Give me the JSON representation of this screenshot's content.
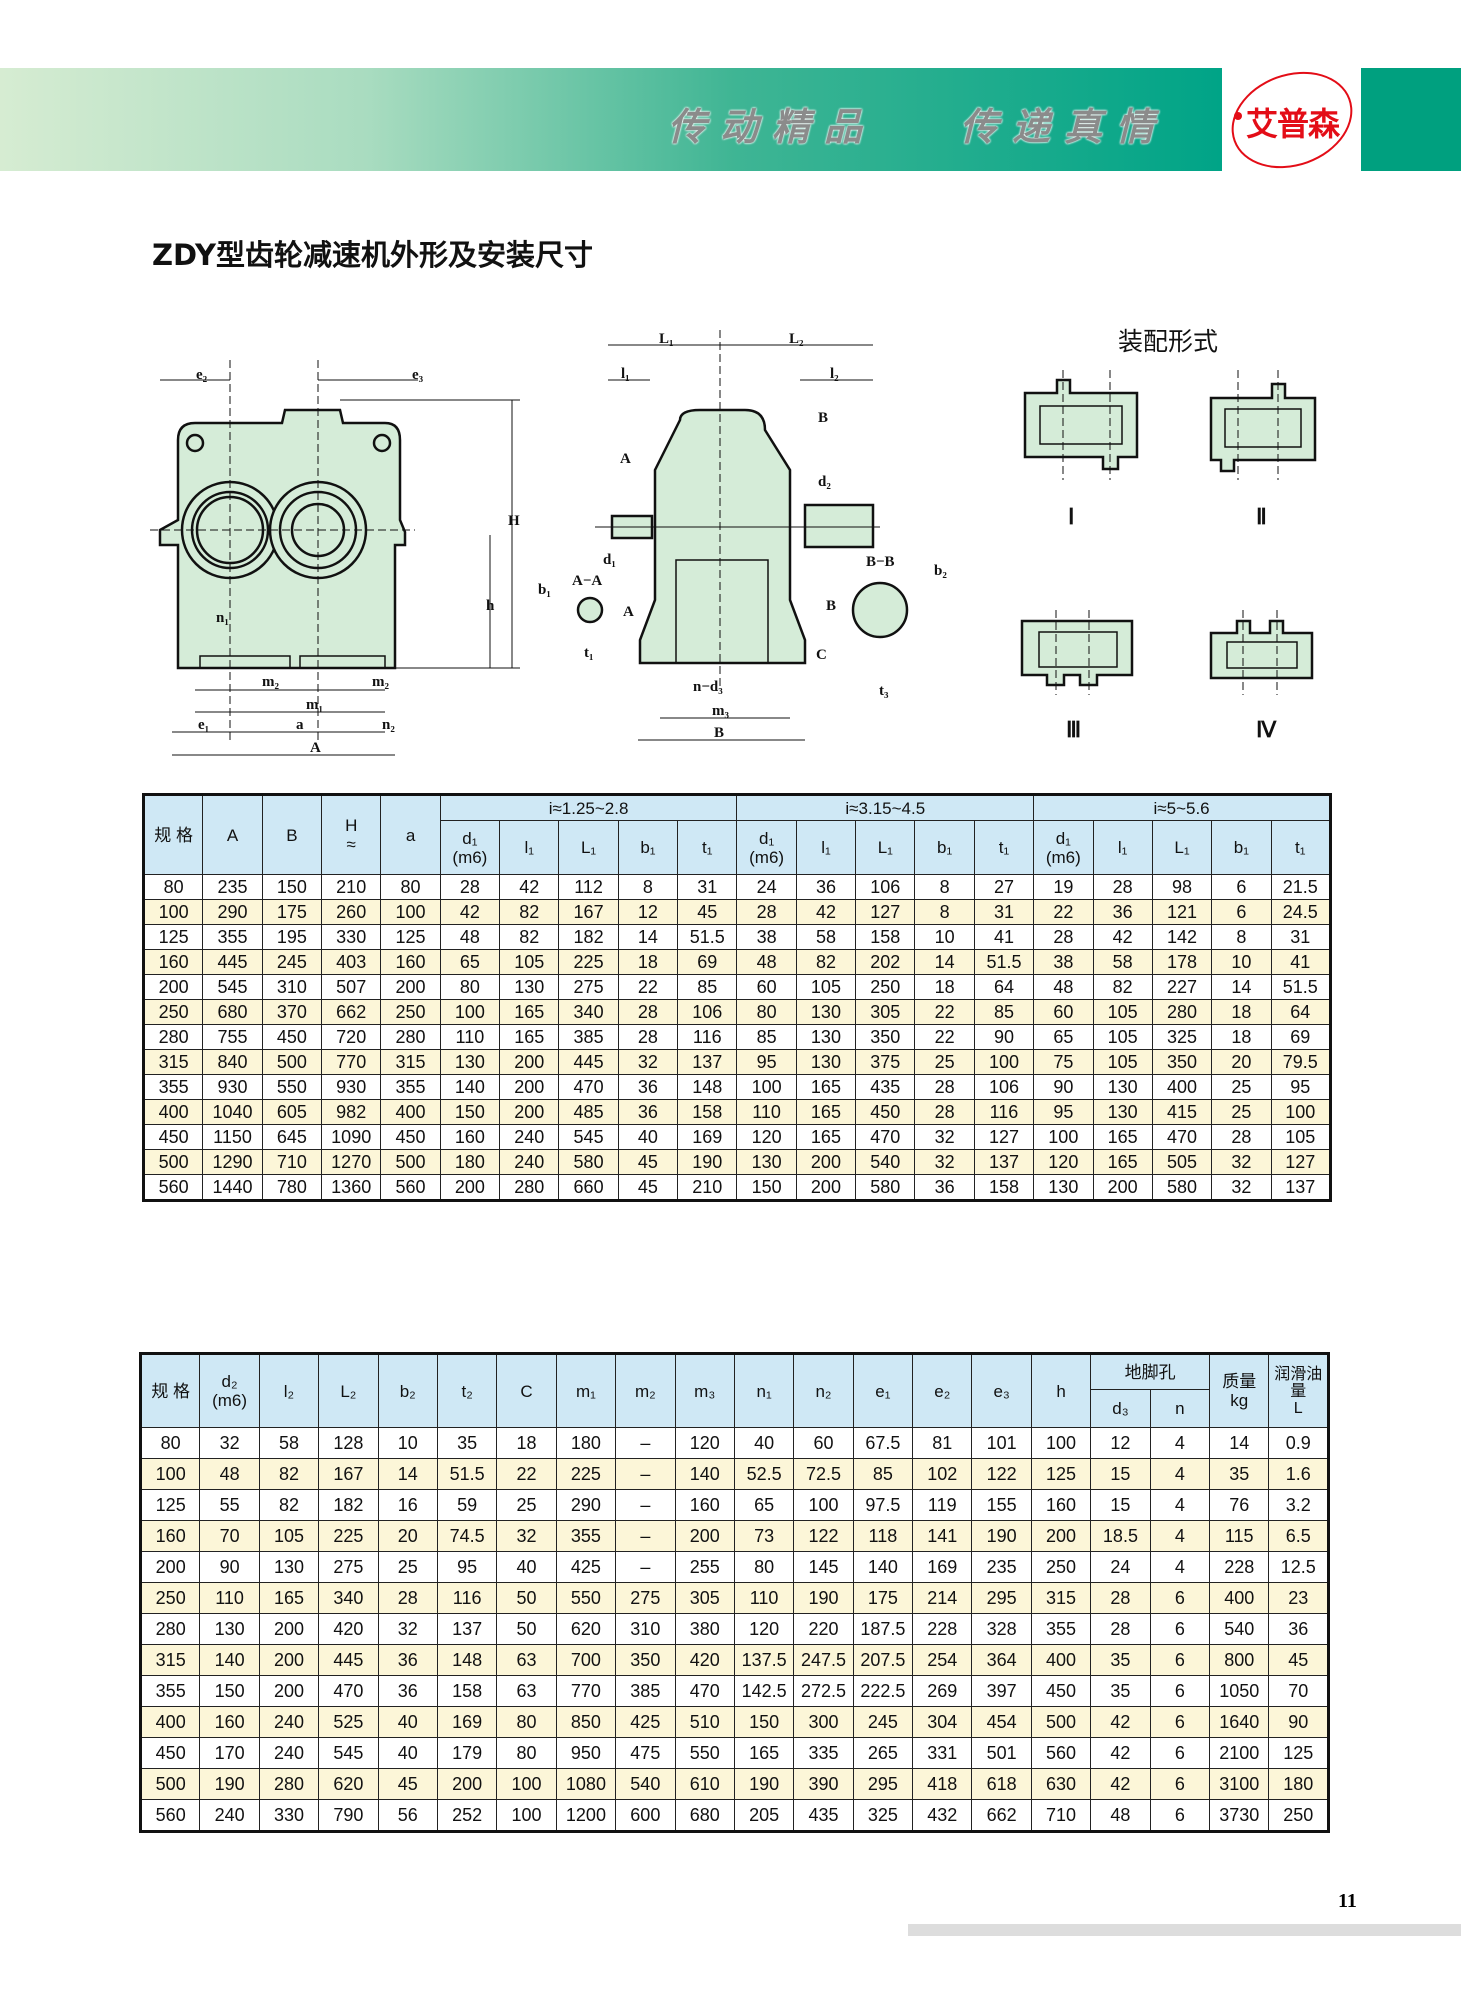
{
  "header": {
    "slogan_1": "传动精品",
    "slogan_2": "传递真情",
    "logo_text": "艾普森",
    "colors": {
      "banner_start": "#d6ecd2",
      "banner_end": "#00a487",
      "logo_red": "#e30d17"
    }
  },
  "page_title": "ZDY型齿轮减速机外形及安装尺寸",
  "drawing": {
    "front_labels": [
      "e₂",
      "e₃",
      "H",
      "h",
      "n₁",
      "m₂",
      "m₂",
      "m₁",
      "e₁",
      "a",
      "n₂",
      "A"
    ],
    "side_labels": [
      "L₁",
      "L₂",
      "l₁",
      "l₂",
      "A",
      "B",
      "d₂",
      "d₁",
      "A−A",
      "A",
      "b₁",
      "t₁",
      "B−B",
      "b₂",
      "B",
      "C",
      "t₃",
      "n−d₃",
      "m₃",
      "B"
    ],
    "assembly_title": "装配形式",
    "assembly_forms": [
      "Ⅰ",
      "Ⅱ",
      "Ⅲ",
      "Ⅳ"
    ]
  },
  "table1": {
    "head": {
      "spec": "规 格",
      "A": "A",
      "B": "B",
      "H": "H",
      "H_approx": "≈",
      "a": "a",
      "groups": [
        "i≈1.25~2.8",
        "i≈3.15~4.5",
        "i≈5~5.6"
      ],
      "sub": [
        "d₁",
        "(m6)",
        "l₁",
        "L₁",
        "b₁",
        "t₁"
      ]
    },
    "rows": [
      [
        "80",
        "235",
        "150",
        "210",
        "80",
        "28",
        "42",
        "112",
        "8",
        "31",
        "24",
        "36",
        "106",
        "8",
        "27",
        "19",
        "28",
        "98",
        "6",
        "21.5"
      ],
      [
        "100",
        "290",
        "175",
        "260",
        "100",
        "42",
        "82",
        "167",
        "12",
        "45",
        "28",
        "42",
        "127",
        "8",
        "31",
        "22",
        "36",
        "121",
        "6",
        "24.5"
      ],
      [
        "125",
        "355",
        "195",
        "330",
        "125",
        "48",
        "82",
        "182",
        "14",
        "51.5",
        "38",
        "58",
        "158",
        "10",
        "41",
        "28",
        "42",
        "142",
        "8",
        "31"
      ],
      [
        "160",
        "445",
        "245",
        "403",
        "160",
        "65",
        "105",
        "225",
        "18",
        "69",
        "48",
        "82",
        "202",
        "14",
        "51.5",
        "38",
        "58",
        "178",
        "10",
        "41"
      ],
      [
        "200",
        "545",
        "310",
        "507",
        "200",
        "80",
        "130",
        "275",
        "22",
        "85",
        "60",
        "105",
        "250",
        "18",
        "64",
        "48",
        "82",
        "227",
        "14",
        "51.5"
      ],
      [
        "250",
        "680",
        "370",
        "662",
        "250",
        "100",
        "165",
        "340",
        "28",
        "106",
        "80",
        "130",
        "305",
        "22",
        "85",
        "60",
        "105",
        "280",
        "18",
        "64"
      ],
      [
        "280",
        "755",
        "450",
        "720",
        "280",
        "110",
        "165",
        "385",
        "28",
        "116",
        "85",
        "130",
        "350",
        "22",
        "90",
        "65",
        "105",
        "325",
        "18",
        "69"
      ],
      [
        "315",
        "840",
        "500",
        "770",
        "315",
        "130",
        "200",
        "445",
        "32",
        "137",
        "95",
        "130",
        "375",
        "25",
        "100",
        "75",
        "105",
        "350",
        "20",
        "79.5"
      ],
      [
        "355",
        "930",
        "550",
        "930",
        "355",
        "140",
        "200",
        "470",
        "36",
        "148",
        "100",
        "165",
        "435",
        "28",
        "106",
        "90",
        "130",
        "400",
        "25",
        "95"
      ],
      [
        "400",
        "1040",
        "605",
        "982",
        "400",
        "150",
        "200",
        "485",
        "36",
        "158",
        "110",
        "165",
        "450",
        "28",
        "116",
        "95",
        "130",
        "415",
        "25",
        "100"
      ],
      [
        "450",
        "1150",
        "645",
        "1090",
        "450",
        "160",
        "240",
        "545",
        "40",
        "169",
        "120",
        "165",
        "470",
        "32",
        "127",
        "100",
        "165",
        "470",
        "28",
        "105"
      ],
      [
        "500",
        "1290",
        "710",
        "1270",
        "500",
        "180",
        "240",
        "580",
        "45",
        "190",
        "130",
        "200",
        "540",
        "32",
        "137",
        "120",
        "165",
        "505",
        "32",
        "127"
      ],
      [
        "560",
        "1440",
        "780",
        "1360",
        "560",
        "200",
        "280",
        "660",
        "45",
        "210",
        "150",
        "200",
        "580",
        "36",
        "158",
        "130",
        "200",
        "580",
        "32",
        "137"
      ]
    ]
  },
  "table2": {
    "head": {
      "spec": "规 格",
      "d2": "d₂",
      "d2_fit": "(m6)",
      "l2": "l₂",
      "L2": "L₂",
      "b2": "b₂",
      "t2": "t₂",
      "C": "C",
      "m1": "m₁",
      "m2": "m₂",
      "m3": "m₃",
      "n1": "n₁",
      "n2": "n₂",
      "e1": "e₁",
      "e2": "e₂",
      "e3": "e₃",
      "h": "h",
      "foot_holes": "地脚孔",
      "d3": "d₃",
      "n": "n",
      "mass": "质量",
      "mass_unit": "kg",
      "oil": "润滑油量",
      "oil_unit": "L"
    },
    "rows": [
      [
        "80",
        "32",
        "58",
        "128",
        "10",
        "35",
        "18",
        "180",
        "–",
        "120",
        "40",
        "60",
        "67.5",
        "81",
        "101",
        "100",
        "12",
        "4",
        "14",
        "0.9"
      ],
      [
        "100",
        "48",
        "82",
        "167",
        "14",
        "51.5",
        "22",
        "225",
        "–",
        "140",
        "52.5",
        "72.5",
        "85",
        "102",
        "122",
        "125",
        "15",
        "4",
        "35",
        "1.6"
      ],
      [
        "125",
        "55",
        "82",
        "182",
        "16",
        "59",
        "25",
        "290",
        "–",
        "160",
        "65",
        "100",
        "97.5",
        "119",
        "155",
        "160",
        "15",
        "4",
        "76",
        "3.2"
      ],
      [
        "160",
        "70",
        "105",
        "225",
        "20",
        "74.5",
        "32",
        "355",
        "–",
        "200",
        "73",
        "122",
        "118",
        "141",
        "190",
        "200",
        "18.5",
        "4",
        "115",
        "6.5"
      ],
      [
        "200",
        "90",
        "130",
        "275",
        "25",
        "95",
        "40",
        "425",
        "–",
        "255",
        "80",
        "145",
        "140",
        "169",
        "235",
        "250",
        "24",
        "4",
        "228",
        "12.5"
      ],
      [
        "250",
        "110",
        "165",
        "340",
        "28",
        "116",
        "50",
        "550",
        "275",
        "305",
        "110",
        "190",
        "175",
        "214",
        "295",
        "315",
        "28",
        "6",
        "400",
        "23"
      ],
      [
        "280",
        "130",
        "200",
        "420",
        "32",
        "137",
        "50",
        "620",
        "310",
        "380",
        "120",
        "220",
        "187.5",
        "228",
        "328",
        "355",
        "28",
        "6",
        "540",
        "36"
      ],
      [
        "315",
        "140",
        "200",
        "445",
        "36",
        "148",
        "63",
        "700",
        "350",
        "420",
        "137.5",
        "247.5",
        "207.5",
        "254",
        "364",
        "400",
        "35",
        "6",
        "800",
        "45"
      ],
      [
        "355",
        "150",
        "200",
        "470",
        "36",
        "158",
        "63",
        "770",
        "385",
        "470",
        "142.5",
        "272.5",
        "222.5",
        "269",
        "397",
        "450",
        "35",
        "6",
        "1050",
        "70"
      ],
      [
        "400",
        "160",
        "240",
        "525",
        "40",
        "169",
        "80",
        "850",
        "425",
        "510",
        "150",
        "300",
        "245",
        "304",
        "454",
        "500",
        "42",
        "6",
        "1640",
        "90"
      ],
      [
        "450",
        "170",
        "240",
        "545",
        "40",
        "179",
        "80",
        "950",
        "475",
        "550",
        "165",
        "335",
        "265",
        "331",
        "501",
        "560",
        "42",
        "6",
        "2100",
        "125"
      ],
      [
        "500",
        "190",
        "280",
        "620",
        "45",
        "200",
        "100",
        "1080",
        "540",
        "610",
        "190",
        "390",
        "295",
        "418",
        "618",
        "630",
        "42",
        "6",
        "3100",
        "180"
      ],
      [
        "560",
        "240",
        "330",
        "790",
        "56",
        "252",
        "100",
        "1200",
        "600",
        "680",
        "205",
        "435",
        "325",
        "432",
        "662",
        "710",
        "48",
        "6",
        "3730",
        "250"
      ]
    ]
  },
  "footer": {
    "page_number": "11"
  }
}
